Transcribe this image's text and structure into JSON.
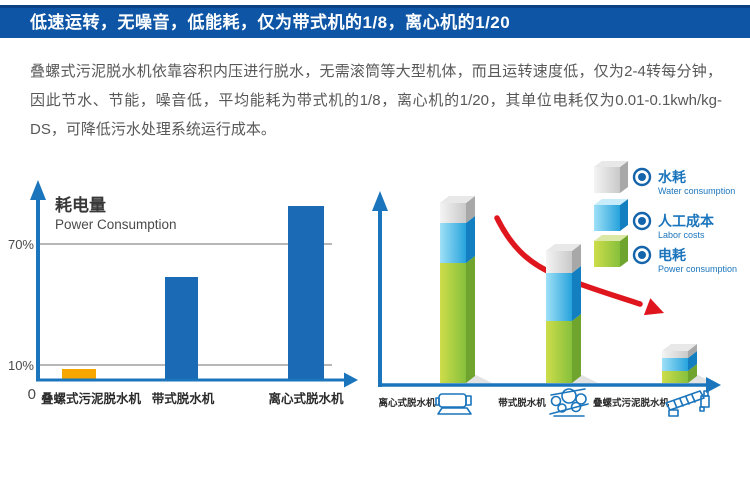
{
  "banner": {
    "title": "低速运转，无噪音，低能耗，仅为带式机的1/8，离心机的1/20"
  },
  "intro": {
    "text": "叠螺式污泥脱水机依靠容积内压进行脱水，无需滚筒等大型机体，而且运转速度低，仅为2-4转每分钟，因此节水、节能，噪音低，平均能耗为带式机的1/8，离心机的1/20，其单位电耗仅为0.01-0.1kwh/kg-DS，可降低污水处理系统运行成本。"
  },
  "colors": {
    "banner_bg": "#0e56a5",
    "banner_border": "#0a4285",
    "axis_blue": "#1b75bc",
    "bar_blue": "#1a6ab5",
    "bar_orange": "#f7a600",
    "trend_red": "#e0161f",
    "legend_text_blue": "#1b75bc",
    "grid_gray": "#8c8c8c"
  },
  "chart_data": [
    {
      "type": "bar",
      "title": "耗电量",
      "subtitle": "Power Consumption",
      "categories": [
        "叠螺式污泥脱水机",
        "带式脱水机",
        "离心式脱水机"
      ],
      "values": [
        5,
        52,
        88
      ],
      "value_unit": "percent",
      "ytick_labels": [
        "70%",
        "10%",
        "0"
      ],
      "ylim": [
        0,
        100
      ],
      "grid": "horizontal gridlines at 10% and 70%",
      "bar_colors": [
        "#f7a600",
        "#1a6ab5",
        "#1a6ab5"
      ],
      "xlabel": "",
      "ylabel": "耗电量 (Power Consumption)"
    },
    {
      "type": "stacked-bar-3d",
      "categories": [
        "离心式脱水机",
        "带式脱水机",
        "叠螺式污泥脱水机"
      ],
      "series": [
        {
          "name": "电耗",
          "name_en": "Power consumption",
          "color": "#8bc53f",
          "values": [
            60,
            31,
            6
          ]
        },
        {
          "name": "人工成本",
          "name_en": "Labor costs",
          "color": "#2aa6df",
          "values": [
            20,
            24,
            6.5
          ]
        },
        {
          "name": "水耗",
          "name_en": "Water consumption",
          "color": "#d8d8d8",
          "values": [
            10,
            11,
            3.5
          ]
        }
      ],
      "legend": [
        {
          "label": "水耗",
          "label_en": "Water consumption",
          "series_index": 2
        },
        {
          "label": "人工成本",
          "label_en": "Labor costs",
          "series_index": 1
        },
        {
          "label": "电耗",
          "label_en": "Power consumption",
          "series_index": 0
        }
      ],
      "legend_position": "right",
      "annotation": "red downward trend arrow across the three bars",
      "ylim": [
        0,
        100
      ]
    }
  ]
}
